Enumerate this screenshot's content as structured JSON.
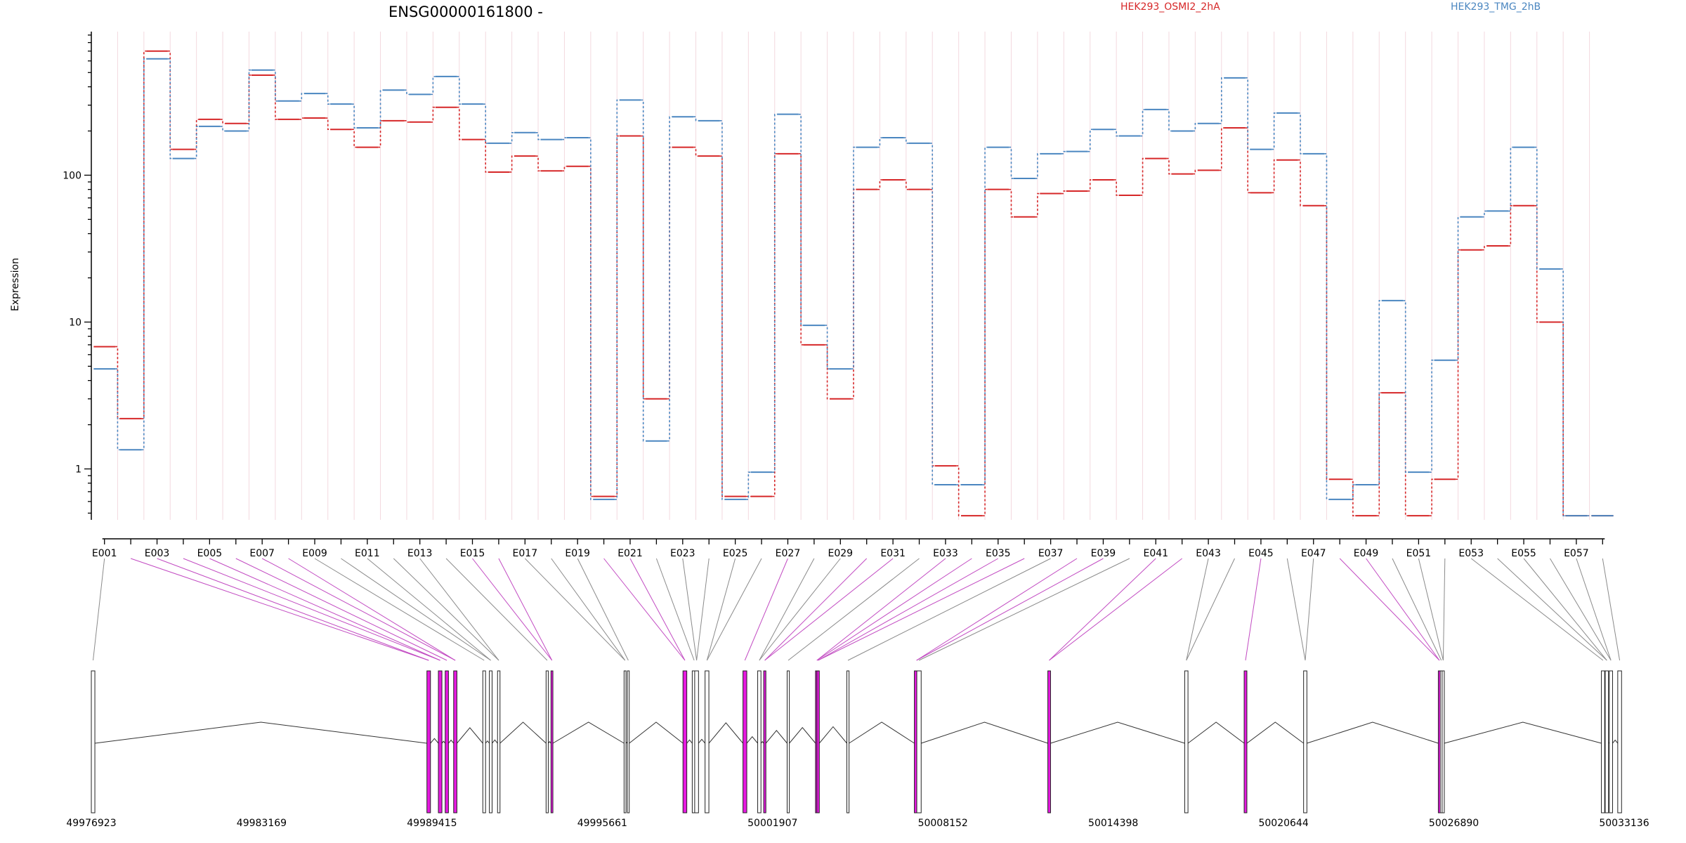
{
  "chart_data": {
    "type": "line",
    "title": "ENSG00000161800 -",
    "ylabel": "Expression",
    "yscale": "log",
    "ylim": [
      0.45,
      950
    ],
    "yticks": [
      "1",
      "10",
      "100"
    ],
    "grid": true,
    "legend_placement": "top-right",
    "categories": [
      "E001",
      "E002",
      "E003",
      "E004",
      "E005",
      "E006",
      "E007",
      "E008",
      "E009",
      "E010",
      "E011",
      "E012",
      "E013",
      "E014",
      "E015",
      "E016",
      "E017",
      "E018",
      "E019",
      "E020",
      "E021",
      "E022",
      "E023",
      "E024",
      "E025",
      "E026",
      "E027",
      "E028",
      "E029",
      "E030",
      "E031",
      "E032",
      "E033",
      "E034",
      "E035",
      "E036",
      "E037",
      "E038",
      "E039",
      "E040",
      "E041",
      "E042",
      "E043",
      "E044",
      "E045",
      "E046",
      "E047",
      "E048",
      "E049",
      "E050",
      "E051",
      "E052",
      "E053",
      "E054",
      "E055",
      "E056",
      "E057",
      "E058"
    ],
    "category_labels_shown": [
      "E001",
      "E003",
      "E005",
      "E007",
      "E009",
      "E011",
      "E013",
      "E015",
      "E017",
      "E019",
      "E021",
      "E023",
      "E025",
      "E027",
      "E029",
      "E031",
      "E033",
      "E035",
      "E037",
      "E039",
      "E041",
      "E043",
      "E045",
      "E047",
      "E049",
      "E051",
      "E053",
      "E055",
      "E057"
    ],
    "series": [
      {
        "name": "HEK293_OSMI2_2hA",
        "color": "#d62728",
        "values": [
          6.8,
          2.2,
          700,
          150,
          240,
          225,
          480,
          240,
          245,
          205,
          155,
          235,
          230,
          290,
          175,
          105,
          135,
          107,
          115,
          0.65,
          185,
          3.0,
          155,
          135,
          0.65,
          0.65,
          140,
          7.0,
          3.0,
          80,
          93,
          80,
          1.05,
          0.48,
          80,
          52,
          75,
          78,
          93,
          73,
          130,
          102,
          108,
          210,
          76,
          127,
          62,
          0.85,
          0.48,
          3.3,
          0.48,
          0.85,
          31,
          33,
          62,
          10,
          0.48,
          0.48
        ]
      },
      {
        "name": "HEK293_TMG_2hB",
        "color": "#4a86c0",
        "values": [
          4.8,
          1.35,
          620,
          130,
          215,
          200,
          520,
          320,
          360,
          305,
          210,
          380,
          355,
          470,
          305,
          165,
          195,
          175,
          180,
          0.62,
          325,
          1.55,
          250,
          235,
          0.62,
          0.95,
          260,
          9.5,
          4.8,
          155,
          180,
          165,
          0.78,
          0.78,
          155,
          95,
          140,
          145,
          205,
          185,
          280,
          200,
          225,
          460,
          150,
          265,
          140,
          0.62,
          0.78,
          14,
          0.95,
          5.5,
          52,
          57,
          155,
          23,
          0.48,
          0.48
        ]
      }
    ],
    "gene_model": {
      "coordinate_labels": [
        "49976923",
        "49983169",
        "49989415",
        "49995661",
        "50001907",
        "50008152",
        "50014398",
        "50020644",
        "50026890",
        "50033136"
      ],
      "coord_range": [
        49976923,
        50033136
      ],
      "highlight_color": "#e619e0",
      "exon_starts": [
        49976923,
        49989230,
        49989650,
        49989900,
        49990210,
        49991280,
        49991520,
        49991820,
        49993600,
        49993780,
        49996460,
        49996580,
        49998620,
        49998960,
        49999050,
        49999430,
        50000820,
        50001360,
        50001580,
        50002440,
        50003480,
        50003530,
        50004630,
        50007105,
        50007195,
        50012000,
        50017020,
        50019200,
        50021380,
        50026320,
        50026390,
        50026460,
        50032300,
        50032440,
        50032590,
        50032900
      ],
      "exon_widths": [
        130,
        130,
        130,
        120,
        120,
        100,
        100,
        90,
        80,
        70,
        70,
        70,
        140,
        140,
        140,
        140,
        140,
        120,
        80,
        80,
        100,
        90,
        80,
        160,
        160,
        100,
        120,
        100,
        120,
        80,
        80,
        80,
        120,
        120,
        120,
        140
      ],
      "exon_highlight": [
        false,
        true,
        true,
        true,
        true,
        false,
        false,
        false,
        false,
        true,
        false,
        false,
        true,
        false,
        false,
        false,
        true,
        false,
        true,
        false,
        true,
        true,
        false,
        true,
        false,
        true,
        false,
        true,
        false,
        true,
        false,
        false,
        false,
        false,
        false,
        false
      ]
    }
  }
}
